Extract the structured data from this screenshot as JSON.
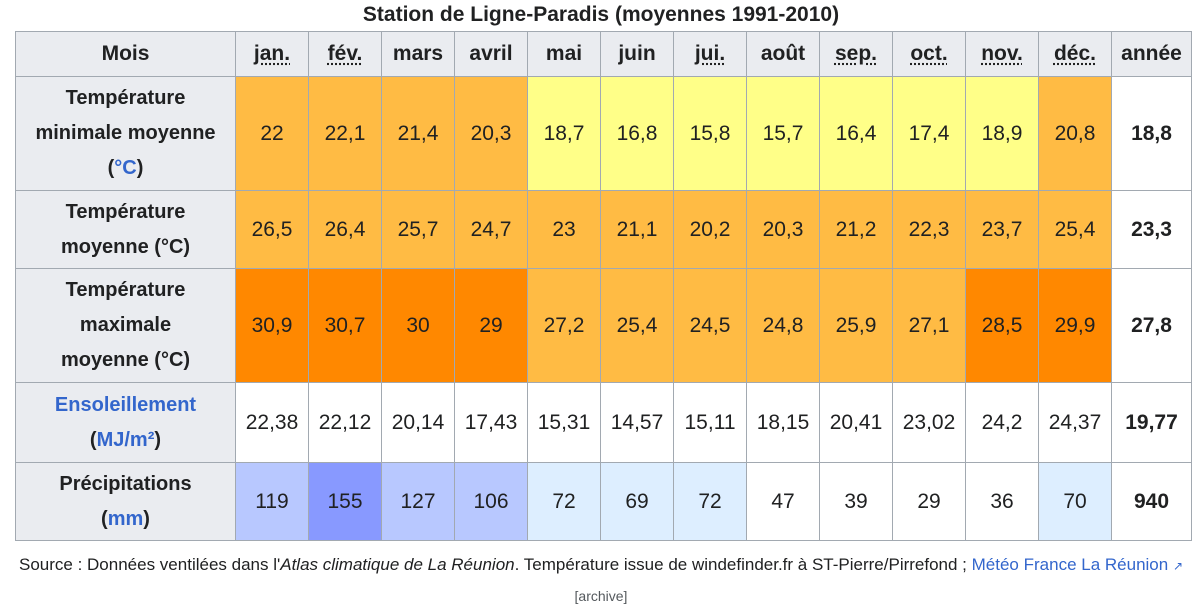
{
  "caption": "Station de Ligne-Paradis (moyennes 1991-2010)",
  "header": {
    "mois_label": "Mois",
    "months": [
      "jan.",
      "fév.",
      "mars",
      "avril",
      "mai",
      "juin",
      "jui.",
      "août",
      "sep.",
      "oct.",
      "nov.",
      "déc."
    ],
    "abbreviated_months": [
      true,
      true,
      false,
      false,
      false,
      false,
      true,
      false,
      true,
      true,
      true,
      true
    ],
    "year_label": "année"
  },
  "rows": [
    {
      "key": "tmin",
      "label_lines": [
        {
          "text": "Température"
        },
        {
          "text": "minimale moyenne"
        },
        {
          "text": "(",
          "link": "°C",
          "after": ")"
        }
      ],
      "values": [
        "22",
        "22,1",
        "21,4",
        "20,3",
        "18,7",
        "16,8",
        "15,8",
        "15,7",
        "16,4",
        "17,4",
        "18,9",
        "20,8"
      ],
      "colors": [
        "#ffbb44",
        "#ffbb44",
        "#ffbb44",
        "#ffbb44",
        "#ffff88",
        "#ffff88",
        "#ffff88",
        "#ffff88",
        "#ffff88",
        "#ffff88",
        "#ffff88",
        "#ffbb44"
      ],
      "total": "18,8"
    },
    {
      "key": "tmoy",
      "label_lines": [
        {
          "text": "Température"
        },
        {
          "text": "moyenne (°C)"
        }
      ],
      "values": [
        "26,5",
        "26,4",
        "25,7",
        "24,7",
        "23",
        "21,1",
        "20,2",
        "20,3",
        "21,2",
        "22,3",
        "23,7",
        "25,4"
      ],
      "colors": [
        "#ffbb44",
        "#ffbb44",
        "#ffbb44",
        "#ffbb44",
        "#ffbb44",
        "#ffbb44",
        "#ffbb44",
        "#ffbb44",
        "#ffbb44",
        "#ffbb44",
        "#ffbb44",
        "#ffbb44"
      ],
      "total": "23,3"
    },
    {
      "key": "tmax",
      "label_lines": [
        {
          "text": "Température"
        },
        {
          "text": "maximale"
        },
        {
          "text": "moyenne (°C)"
        }
      ],
      "values": [
        "30,9",
        "30,7",
        "30",
        "29",
        "27,2",
        "25,4",
        "24,5",
        "24,8",
        "25,9",
        "27,1",
        "28,5",
        "29,9"
      ],
      "colors": [
        "#ff8800",
        "#ff8800",
        "#ff8800",
        "#ff8800",
        "#ffbb44",
        "#ffbb44",
        "#ffbb44",
        "#ffbb44",
        "#ffbb44",
        "#ffbb44",
        "#ff8800",
        "#ff8800"
      ],
      "total": "27,8"
    },
    {
      "key": "soleil",
      "label_lines": [
        {
          "link": "Ensoleillement"
        },
        {
          "text": "(",
          "link": "MJ/m²",
          "after": ")"
        }
      ],
      "values": [
        "22,38",
        "22,12",
        "20,14",
        "17,43",
        "15,31",
        "14,57",
        "15,11",
        "18,15",
        "20,41",
        "23,02",
        "24,2",
        "24,37"
      ],
      "colors": [
        "#ffffff",
        "#ffffff",
        "#ffffff",
        "#ffffff",
        "#ffffff",
        "#ffffff",
        "#ffffff",
        "#ffffff",
        "#ffffff",
        "#ffffff",
        "#ffffff",
        "#ffffff"
      ],
      "total": "19,77"
    },
    {
      "key": "precip",
      "label_lines": [
        {
          "text": "Précipitations"
        },
        {
          "text": "(",
          "link": "mm",
          "after": ")"
        }
      ],
      "values": [
        "119",
        "155",
        "127",
        "106",
        "72",
        "69",
        "72",
        "47",
        "39",
        "29",
        "36",
        "70"
      ],
      "colors": [
        "#b8c8ff",
        "#8899ff",
        "#b8c8ff",
        "#b8c8ff",
        "#ddeeff",
        "#ddeeff",
        "#ddeeff",
        "#ffffff",
        "#ffffff",
        "#ffffff",
        "#ffffff",
        "#ddeeff"
      ],
      "total": "940"
    }
  ],
  "source": {
    "prefix": "Source : Données ventilées dans l'",
    "italic": "Atlas climatique de La Réunion",
    "middle": ". Température issue de windefinder.fr à ST-Pierre/Pirrefond ; ",
    "link": "Météo France La Réunion",
    "ext_icon": "external-link-icon",
    "archive": "[archive]"
  }
}
